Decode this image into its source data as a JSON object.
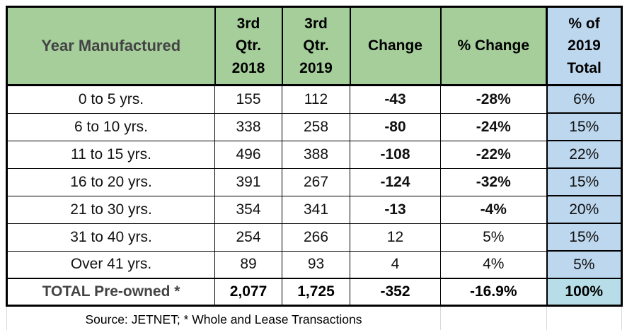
{
  "colors": {
    "header_green": "#A5CE9B",
    "percent_column_blue": "#BDD7EE",
    "total_percent_teal": "#B7DEE8",
    "negative_red": "#FF0000",
    "gray_label": "#444444",
    "footer_border_gray": "#D9D9D9"
  },
  "table": {
    "headers": {
      "year_manufactured": "Year Manufactured",
      "q3_2018": [
        "3rd",
        "Qtr.",
        "2018"
      ],
      "q3_2019": [
        "3rd",
        "Qtr.",
        "2019"
      ],
      "change": "Change",
      "pct_change": "% Change",
      "pct_of_total": [
        "% of",
        "2019",
        "Total"
      ]
    },
    "rows": [
      {
        "year_range": "0 to 5 yrs.",
        "q3_2018": "155",
        "q3_2019": "112",
        "change": "-43",
        "pct_change": "-28%",
        "pct_of_total": "6%",
        "negative": true
      },
      {
        "year_range": "6 to 10 yrs.",
        "q3_2018": "338",
        "q3_2019": "258",
        "change": "-80",
        "pct_change": "-24%",
        "pct_of_total": "15%",
        "negative": true
      },
      {
        "year_range": "11 to 15 yrs.",
        "q3_2018": "496",
        "q3_2019": "388",
        "change": "-108",
        "pct_change": "-22%",
        "pct_of_total": "22%",
        "negative": true
      },
      {
        "year_range": "16 to 20 yrs.",
        "q3_2018": "391",
        "q3_2019": "267",
        "change": "-124",
        "pct_change": "-32%",
        "pct_of_total": "15%",
        "negative": true
      },
      {
        "year_range": "21 to 30 yrs.",
        "q3_2018": "354",
        "q3_2019": "341",
        "change": "-13",
        "pct_change": "-4%",
        "pct_of_total": "20%",
        "negative": true
      },
      {
        "year_range": "31 to 40 yrs.",
        "q3_2018": "254",
        "q3_2019": "266",
        "change": "12",
        "pct_change": "5%",
        "pct_of_total": "15%",
        "negative": false
      },
      {
        "year_range": "Over 41 yrs.",
        "q3_2018": "89",
        "q3_2019": "93",
        "change": "4",
        "pct_change": "4%",
        "pct_of_total": "5%",
        "negative": false
      }
    ],
    "total_row": {
      "year_range": "TOTAL Pre-owned *",
      "q3_2018": "2,077",
      "q3_2019": "1,725",
      "change": "-352",
      "pct_change": "-16.9%",
      "pct_of_total": "100%",
      "negative": true
    },
    "source_note": "Source: JETNET; * Whole and Lease Transactions"
  }
}
